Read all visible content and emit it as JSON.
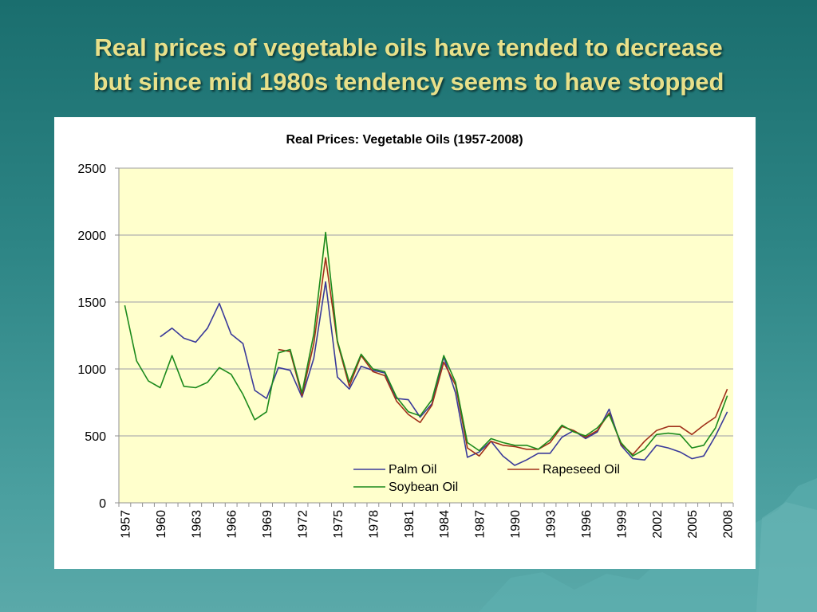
{
  "slide": {
    "title_line1": "Real prices of vegetable oils have tended to decrease",
    "title_line2": "but since mid 1980s tendency seems to have stopped"
  },
  "colors": {
    "plot_background": "#ffffcc",
    "palm_oil": "#3a3a9a",
    "rapeseed_oil": "#a0301a",
    "soybean_oil": "#1c8a1c",
    "title_text": "#e8e08a"
  },
  "chart_data": {
    "type": "line",
    "title": "Real Prices: Vegetable Oils (1957-2008)",
    "xlabel": "",
    "ylabel": "",
    "ylim": [
      0,
      2500
    ],
    "yticks": [
      0,
      500,
      1000,
      1500,
      2000,
      2500
    ],
    "grid": true,
    "legend_position": "bottom-center-inside",
    "x": [
      1957,
      1958,
      1959,
      1960,
      1961,
      1962,
      1963,
      1964,
      1965,
      1966,
      1967,
      1968,
      1969,
      1970,
      1971,
      1972,
      1973,
      1974,
      1975,
      1976,
      1977,
      1978,
      1979,
      1980,
      1981,
      1982,
      1983,
      1984,
      1985,
      1986,
      1987,
      1988,
      1989,
      1990,
      1991,
      1992,
      1993,
      1994,
      1995,
      1996,
      1997,
      1998,
      1999,
      2000,
      2001,
      2002,
      2003,
      2004,
      2005,
      2006,
      2007,
      2008
    ],
    "xtick_labels": [
      "1957",
      "1960",
      "1963",
      "1966",
      "1969",
      "1972",
      "1975",
      "1978",
      "1981",
      "1984",
      "1987",
      "1990",
      "1993",
      "1996",
      "1999",
      "2002",
      "2005",
      "2008"
    ],
    "series": [
      {
        "name": "Palm Oil",
        "values": [
          null,
          null,
          null,
          1240,
          1305,
          1230,
          1200,
          1305,
          1490,
          1260,
          1190,
          840,
          780,
          1010,
          990,
          790,
          1080,
          1650,
          940,
          850,
          1020,
          990,
          970,
          780,
          770,
          640,
          740,
          1090,
          820,
          340,
          380,
          460,
          350,
          280,
          320,
          370,
          370,
          490,
          540,
          480,
          530,
          700,
          430,
          330,
          320,
          430,
          410,
          380,
          330,
          350,
          500,
          680
        ]
      },
      {
        "name": "Rapeseed Oil",
        "values": [
          null,
          null,
          null,
          null,
          null,
          null,
          null,
          null,
          null,
          null,
          null,
          null,
          null,
          1145,
          1130,
          800,
          1190,
          1830,
          1200,
          870,
          1100,
          980,
          950,
          760,
          660,
          600,
          730,
          1050,
          880,
          410,
          350,
          460,
          430,
          420,
          400,
          400,
          450,
          570,
          540,
          490,
          540,
          670,
          440,
          360,
          460,
          540,
          570,
          570,
          510,
          580,
          640,
          850
        ]
      },
      {
        "name": "Soybean Oil",
        "values": [
          1475,
          1060,
          910,
          860,
          1100,
          870,
          860,
          900,
          1010,
          960,
          810,
          620,
          680,
          1120,
          1145,
          820,
          1260,
          2020,
          1210,
          900,
          1110,
          1000,
          980,
          790,
          680,
          650,
          770,
          1100,
          900,
          450,
          390,
          480,
          450,
          430,
          430,
          400,
          470,
          580,
          530,
          500,
          560,
          660,
          450,
          350,
          400,
          510,
          520,
          510,
          410,
          430,
          560,
          800
        ]
      }
    ]
  }
}
